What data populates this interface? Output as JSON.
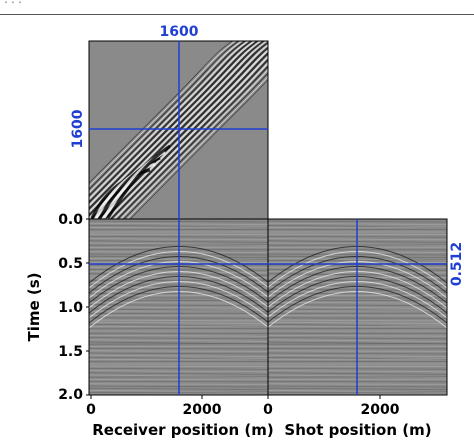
{
  "header": {
    "running_head": "..."
  },
  "panels": {
    "top": {
      "annotation_x": "1600",
      "annotation_y": "1600"
    },
    "left": {
      "annotation_time": "0.512"
    }
  },
  "axes": {
    "time_label": "Time (s)",
    "time_ticks": [
      "0.0",
      "0.5",
      "1.0",
      "1.5",
      "2.0"
    ],
    "receiver_label": "Receiver position (m)",
    "receiver_ticks": [
      "0",
      "2000"
    ],
    "shot_label": "Shot position (m)",
    "shot_ticks": [
      "0",
      "2000"
    ]
  },
  "colors": {
    "crosshair": "#1f3fd1",
    "seismic_gray": "#8a8a8a"
  },
  "chart_data": {
    "type": "heatmap",
    "description_values": {
      "receiver_crosshair_m": 1600,
      "shot_crosshair_m": 1600,
      "time_crosshair_s": 0.512,
      "time_range_s": [
        0.0,
        2.0
      ],
      "receiver_range_m": [
        0,
        3200
      ],
      "shot_range_m": [
        0,
        3200
      ]
    }
  }
}
